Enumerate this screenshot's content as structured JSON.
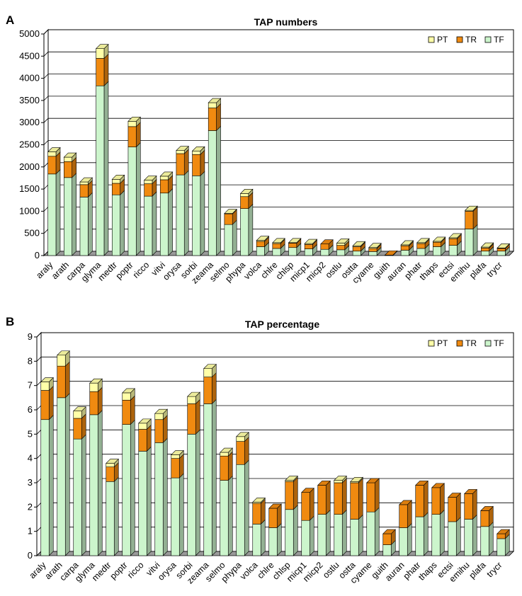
{
  "colors": {
    "TF": "#ccf5cc",
    "TR": "#f08a10",
    "PT": "#ffffa8",
    "frame": "#000000",
    "floor": "#9a9a9a"
  },
  "chart_data": [
    {
      "panel": "A",
      "type": "bar",
      "stacked": true,
      "title": "TAP numbers",
      "ylim": [
        0,
        5000
      ],
      "yticks": [
        "0",
        "500",
        "1000",
        "1500",
        "2000",
        "2500",
        "3000",
        "3500",
        "4000",
        "4500",
        "5000"
      ],
      "grid": true,
      "legend_position": "top-right",
      "legend": [
        "PT",
        "TR",
        "TF"
      ],
      "categories": [
        "araly",
        "arath",
        "carpa",
        "glyma",
        "medtr",
        "poptr",
        "ricco",
        "vitvi",
        "orysa",
        "sorbi",
        "zeama",
        "selmo",
        "phypa",
        "volca",
        "chlre",
        "chlsp",
        "micp1",
        "micp2",
        "ostlu",
        "ostta",
        "cyame",
        "guith",
        "auran",
        "phatr",
        "thaps",
        "ectsi",
        "emihu",
        "plafa",
        "trycr"
      ],
      "series": [
        {
          "name": "TF",
          "values": [
            1840,
            1760,
            1320,
            3830,
            1370,
            2450,
            1340,
            1410,
            1820,
            1800,
            2820,
            700,
            1060,
            200,
            160,
            180,
            150,
            140,
            130,
            100,
            90,
            0,
            120,
            160,
            200,
            230,
            600,
            100,
            100
          ]
        },
        {
          "name": "TR",
          "values": [
            400,
            360,
            280,
            620,
            260,
            460,
            280,
            300,
            480,
            480,
            510,
            240,
            270,
            120,
            110,
            100,
            100,
            120,
            100,
            100,
            70,
            10,
            100,
            110,
            100,
            150,
            400,
            70,
            60
          ]
        },
        {
          "name": "PT",
          "values": [
            100,
            100,
            60,
            220,
            90,
            120,
            80,
            80,
            70,
            80,
            120,
            10,
            70,
            20,
            20,
            10,
            20,
            0,
            50,
            20,
            20,
            0,
            20,
            20,
            20,
            20,
            20,
            20,
            10
          ]
        }
      ]
    },
    {
      "panel": "B",
      "type": "bar",
      "stacked": true,
      "title": "TAP percentage",
      "ylim": [
        0,
        9
      ],
      "yticks": [
        "0",
        "1",
        "2",
        "3",
        "4",
        "5",
        "6",
        "7",
        "8",
        "9"
      ],
      "grid": true,
      "legend_position": "top-right",
      "legend": [
        "PT",
        "TR",
        "TF"
      ],
      "categories": [
        "araly",
        "arath",
        "carpa",
        "glyma",
        "medtr",
        "poptr",
        "ricco",
        "vitvi",
        "orysa",
        "sorbi",
        "zeama",
        "selmo",
        "phypa",
        "volca",
        "chlre",
        "chlsp",
        "micp1",
        "micp2",
        "ostlu",
        "ostta",
        "cyame",
        "guith",
        "auran",
        "phatr",
        "thaps",
        "ectsi",
        "emihu",
        "plafa",
        "trycr"
      ],
      "series": [
        {
          "name": "TF",
          "values": [
            5.6,
            6.5,
            4.8,
            5.8,
            3.05,
            5.4,
            4.3,
            4.65,
            3.2,
            5.0,
            6.25,
            3.1,
            3.75,
            1.3,
            1.15,
            1.9,
            1.45,
            1.7,
            1.7,
            1.5,
            1.8,
            0.45,
            1.15,
            1.6,
            1.7,
            1.4,
            1.5,
            1.2,
            0.7
          ]
        },
        {
          "name": "TR",
          "values": [
            1.2,
            1.3,
            0.85,
            0.95,
            0.6,
            1.0,
            0.9,
            0.95,
            0.8,
            1.25,
            1.1,
            1.0,
            0.95,
            0.85,
            0.8,
            1.15,
            1.15,
            1.2,
            1.3,
            1.5,
            1.2,
            0.45,
            0.95,
            1.3,
            1.1,
            1.0,
            1.05,
            0.65,
            0.2
          ]
        },
        {
          "name": "PT",
          "values": [
            0.35,
            0.45,
            0.3,
            0.35,
            0.15,
            0.3,
            0.25,
            0.25,
            0.15,
            0.3,
            0.35,
            0.15,
            0.2,
            0.05,
            0.0,
            0.05,
            0.0,
            0.0,
            0.1,
            0.05,
            0.0,
            0.0,
            0.0,
            0.0,
            0.0,
            0.0,
            0.0,
            0.0,
            0.0
          ]
        }
      ]
    }
  ]
}
